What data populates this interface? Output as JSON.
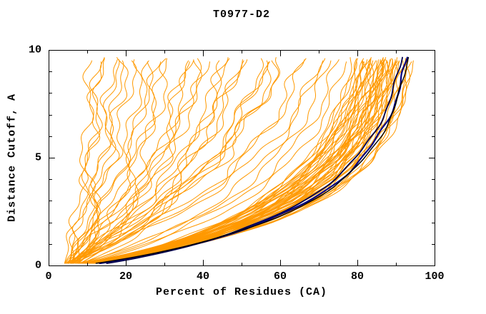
{
  "figure": {
    "title": "T0977-D2"
  },
  "chart_data": {
    "type": "line",
    "title": "T0977-D2",
    "xlabel": "Percent of Residues (CA)",
    "ylabel": "Distance Cutoff, A",
    "xlim": [
      0,
      100
    ],
    "ylim": [
      0,
      10
    ],
    "x_ticks": [
      0,
      20,
      40,
      60,
      80,
      100
    ],
    "y_ticks": [
      0,
      5,
      10
    ],
    "x_minor_step": 10,
    "y_minor_step": 1,
    "grid": false,
    "legend": "none",
    "frame": "box",
    "colors": {
      "models": "#FF9900",
      "highlight_navy": "#000080",
      "highlight_dark": "#000000",
      "frame": "#000000",
      "background": "#FFFFFF"
    },
    "curve_params_format": [
      "x_end_percent",
      "a_scale",
      "b_shape",
      "x_start_percent",
      "wiggle_amp",
      "wiggle_phase"
    ],
    "y_range_drawn": [
      0.1,
      9.7
    ],
    "model_curves": [
      [
        97.5,
        2.6,
        0.92,
        8,
        0.7,
        0.3
      ],
      [
        97,
        2.9,
        0.9,
        7,
        0.8,
        1.1
      ],
      [
        96.5,
        2.4,
        0.95,
        6,
        0.6,
        2.0
      ],
      [
        96,
        3.1,
        0.88,
        9,
        0.9,
        2.8
      ],
      [
        95.5,
        2.7,
        0.93,
        5,
        0.7,
        3.6
      ],
      [
        95,
        3.3,
        0.87,
        8,
        1.0,
        4.4
      ],
      [
        94.5,
        2.3,
        0.96,
        6,
        0.6,
        5.2
      ],
      [
        94,
        2.8,
        0.91,
        7,
        0.8,
        0.7
      ],
      [
        93.5,
        3.0,
        0.89,
        5,
        0.9,
        1.5
      ],
      [
        93,
        2.5,
        0.94,
        10,
        0.7,
        2.3
      ],
      [
        92.5,
        3.2,
        0.86,
        6,
        1.0,
        3.1
      ],
      [
        92,
        2.6,
        0.92,
        7,
        0.6,
        3.9
      ],
      [
        91.5,
        2.9,
        0.9,
        5,
        0.8,
        4.7
      ],
      [
        91,
        2.4,
        0.95,
        8,
        0.7,
        5.5
      ],
      [
        90.5,
        3.4,
        0.87,
        6,
        0.9,
        0.2
      ],
      [
        90,
        2.7,
        0.93,
        7,
        0.6,
        1.0
      ],
      [
        89.5,
        3.1,
        0.88,
        5,
        0.8,
        1.8
      ],
      [
        89,
        2.5,
        0.94,
        6,
        0.7,
        2.6
      ],
      [
        88.5,
        2.8,
        0.91,
        8,
        0.9,
        3.4
      ],
      [
        88,
        3.3,
        0.86,
        7,
        0.6,
        4.2
      ],
      [
        87.5,
        2.6,
        0.92,
        5,
        0.8,
        5.0
      ],
      [
        87,
        3.0,
        0.89,
        6,
        0.7,
        5.8
      ],
      [
        86.5,
        2.4,
        0.95,
        9,
        0.9,
        0.5
      ],
      [
        86,
        2.9,
        0.9,
        4,
        0.6,
        1.3
      ],
      [
        85.5,
        3.2,
        0.87,
        6,
        0.8,
        2.1
      ],
      [
        85,
        2.5,
        0.93,
        7,
        0.7,
        2.9
      ],
      [
        84.5,
        2.8,
        0.91,
        5,
        0.9,
        3.7
      ],
      [
        84,
        3.1,
        0.88,
        6,
        0.6,
        4.5
      ],
      [
        96.8,
        2.5,
        0.93,
        7,
        0.8,
        5.3
      ],
      [
        96.2,
        3.0,
        0.89,
        6,
        0.7,
        0.1
      ],
      [
        95.8,
        2.6,
        0.92,
        8,
        0.9,
        0.9
      ],
      [
        95.2,
        3.2,
        0.87,
        5,
        0.6,
        1.7
      ],
      [
        94.8,
        2.4,
        0.95,
        7,
        0.8,
        2.5
      ],
      [
        94.2,
        2.9,
        0.9,
        6,
        0.7,
        3.3
      ],
      [
        93.8,
        3.3,
        0.86,
        8,
        0.9,
        4.1
      ],
      [
        93.2,
        2.5,
        0.94,
        5,
        0.6,
        4.9
      ],
      [
        92.8,
        2.8,
        0.91,
        7,
        0.8,
        5.7
      ],
      [
        92.2,
        3.1,
        0.88,
        6,
        0.7,
        0.4
      ],
      [
        91.8,
        2.6,
        0.92,
        9,
        0.9,
        1.2
      ],
      [
        91.2,
        2.9,
        0.9,
        5,
        0.6,
        2.0
      ],
      [
        90.8,
        2.3,
        0.96,
        7,
        0.8,
        2.8
      ],
      [
        90.2,
        3.4,
        0.87,
        6,
        0.7,
        3.6
      ],
      [
        89.8,
        2.7,
        0.93,
        8,
        0.9,
        4.4
      ],
      [
        89.2,
        3.0,
        0.89,
        5,
        0.6,
        5.2
      ],
      [
        88.8,
        2.4,
        0.95,
        6,
        0.8,
        0.0
      ],
      [
        88.2,
        3.2,
        0.88,
        7,
        0.7,
        0.8
      ],
      [
        87.8,
        2.6,
        0.92,
        5,
        0.9,
        1.6
      ],
      [
        87.2,
        2.9,
        0.9,
        8,
        0.6,
        2.4
      ],
      [
        86.8,
        2.3,
        0.96,
        6,
        0.8,
        3.2
      ],
      [
        86.2,
        3.3,
        0.86,
        7,
        0.7,
        4.0
      ],
      [
        85.8,
        2.7,
        0.92,
        5,
        0.9,
        4.8
      ],
      [
        85.2,
        3.0,
        0.89,
        6,
        0.6,
        5.6
      ],
      [
        12,
        5.5,
        1.1,
        5,
        1.2,
        0.6
      ],
      [
        14,
        4.8,
        1.05,
        6,
        1.4,
        1.4
      ],
      [
        16,
        6.0,
        1.12,
        4,
        1.1,
        2.2
      ],
      [
        18,
        5.2,
        1.0,
        7,
        1.5,
        3.0
      ],
      [
        20,
        4.5,
        1.08,
        5,
        1.2,
        3.8
      ],
      [
        23,
        5.8,
        0.98,
        6,
        1.6,
        4.6
      ],
      [
        26,
        4.2,
        1.06,
        4,
        1.3,
        5.4
      ],
      [
        29,
        5.0,
        1.1,
        7,
        1.1,
        0.2
      ],
      [
        32,
        4.6,
        0.97,
        5,
        1.5,
        1.0
      ],
      [
        35,
        5.5,
        1.04,
        6,
        1.2,
        1.8
      ],
      [
        38,
        4.3,
        1.12,
        4,
        1.6,
        2.6
      ],
      [
        41,
        5.2,
        0.96,
        7,
        1.3,
        3.4
      ],
      [
        44,
        4.8,
        1.06,
        5,
        1.1,
        4.2
      ],
      [
        47,
        5.6,
        1.02,
        6,
        1.5,
        5.0
      ],
      [
        50,
        4.4,
        1.1,
        4,
        1.2,
        5.8
      ],
      [
        53,
        5.1,
        0.98,
        7,
        1.6,
        0.8
      ],
      [
        56,
        4.7,
        1.05,
        5,
        1.3,
        1.6
      ],
      [
        59,
        5.4,
        1.0,
        6,
        1.1,
        2.4
      ],
      [
        62,
        4.5,
        1.08,
        4,
        1.5,
        3.2
      ],
      [
        65,
        5.3,
        0.97,
        7,
        1.2,
        4.0
      ],
      [
        68,
        4.9,
        1.06,
        5,
        1.6,
        4.8
      ],
      [
        71,
        5.7,
        1.03,
        6,
        1.3,
        5.6
      ],
      [
        74,
        4.6,
        1.09,
        4,
        1.1,
        0.3
      ],
      [
        77,
        5.2,
        0.99,
        7,
        1.4,
        1.1
      ],
      [
        80,
        4.8,
        1.07,
        5,
        1.2,
        1.9
      ],
      [
        15,
        7.0,
        1.15,
        6,
        1.5,
        2.7
      ],
      [
        21,
        6.5,
        0.95,
        5,
        1.2,
        3.5
      ],
      [
        27,
        6.8,
        1.05,
        6,
        1.4,
        4.3
      ],
      [
        33,
        6.2,
        1.1,
        4,
        1.1,
        5.1
      ],
      [
        39,
        6.6,
        0.96,
        7,
        1.5,
        5.9
      ],
      [
        45,
        6.0,
        1.04,
        5,
        1.2,
        0.9
      ],
      [
        51,
        6.4,
        1.08,
        6,
        1.4,
        1.7
      ],
      [
        57,
        6.1,
        0.98,
        4,
        1.1,
        2.5
      ],
      [
        63,
        6.7,
        1.06,
        7,
        1.5,
        3.3
      ],
      [
        69,
        5.9,
        1.02,
        5,
        1.2,
        4.1
      ],
      [
        75,
        6.3,
        1.09,
        6,
        1.4,
        4.9
      ],
      [
        82,
        3.8,
        0.94,
        6,
        1.0,
        0.5
      ],
      [
        81,
        4.0,
        0.92,
        5,
        1.0,
        1.3
      ],
      [
        83,
        3.6,
        0.95,
        7,
        0.9,
        2.1
      ],
      [
        79,
        4.2,
        0.93,
        6,
        1.0,
        2.9
      ]
    ],
    "highlight_curves": [
      {
        "params": [
          96.5,
          2.7,
          0.91,
          9,
          0.35,
          0.2
        ],
        "color": "#000080",
        "width": 2.2
      },
      {
        "params": [
          95.8,
          2.85,
          0.9,
          11,
          0.3,
          1.1
        ],
        "color": "#00004d",
        "width": 1.8
      },
      {
        "params": [
          96.2,
          2.6,
          0.92,
          8,
          0.25,
          2.0
        ],
        "color": "#000000",
        "width": 1.4
      }
    ]
  }
}
